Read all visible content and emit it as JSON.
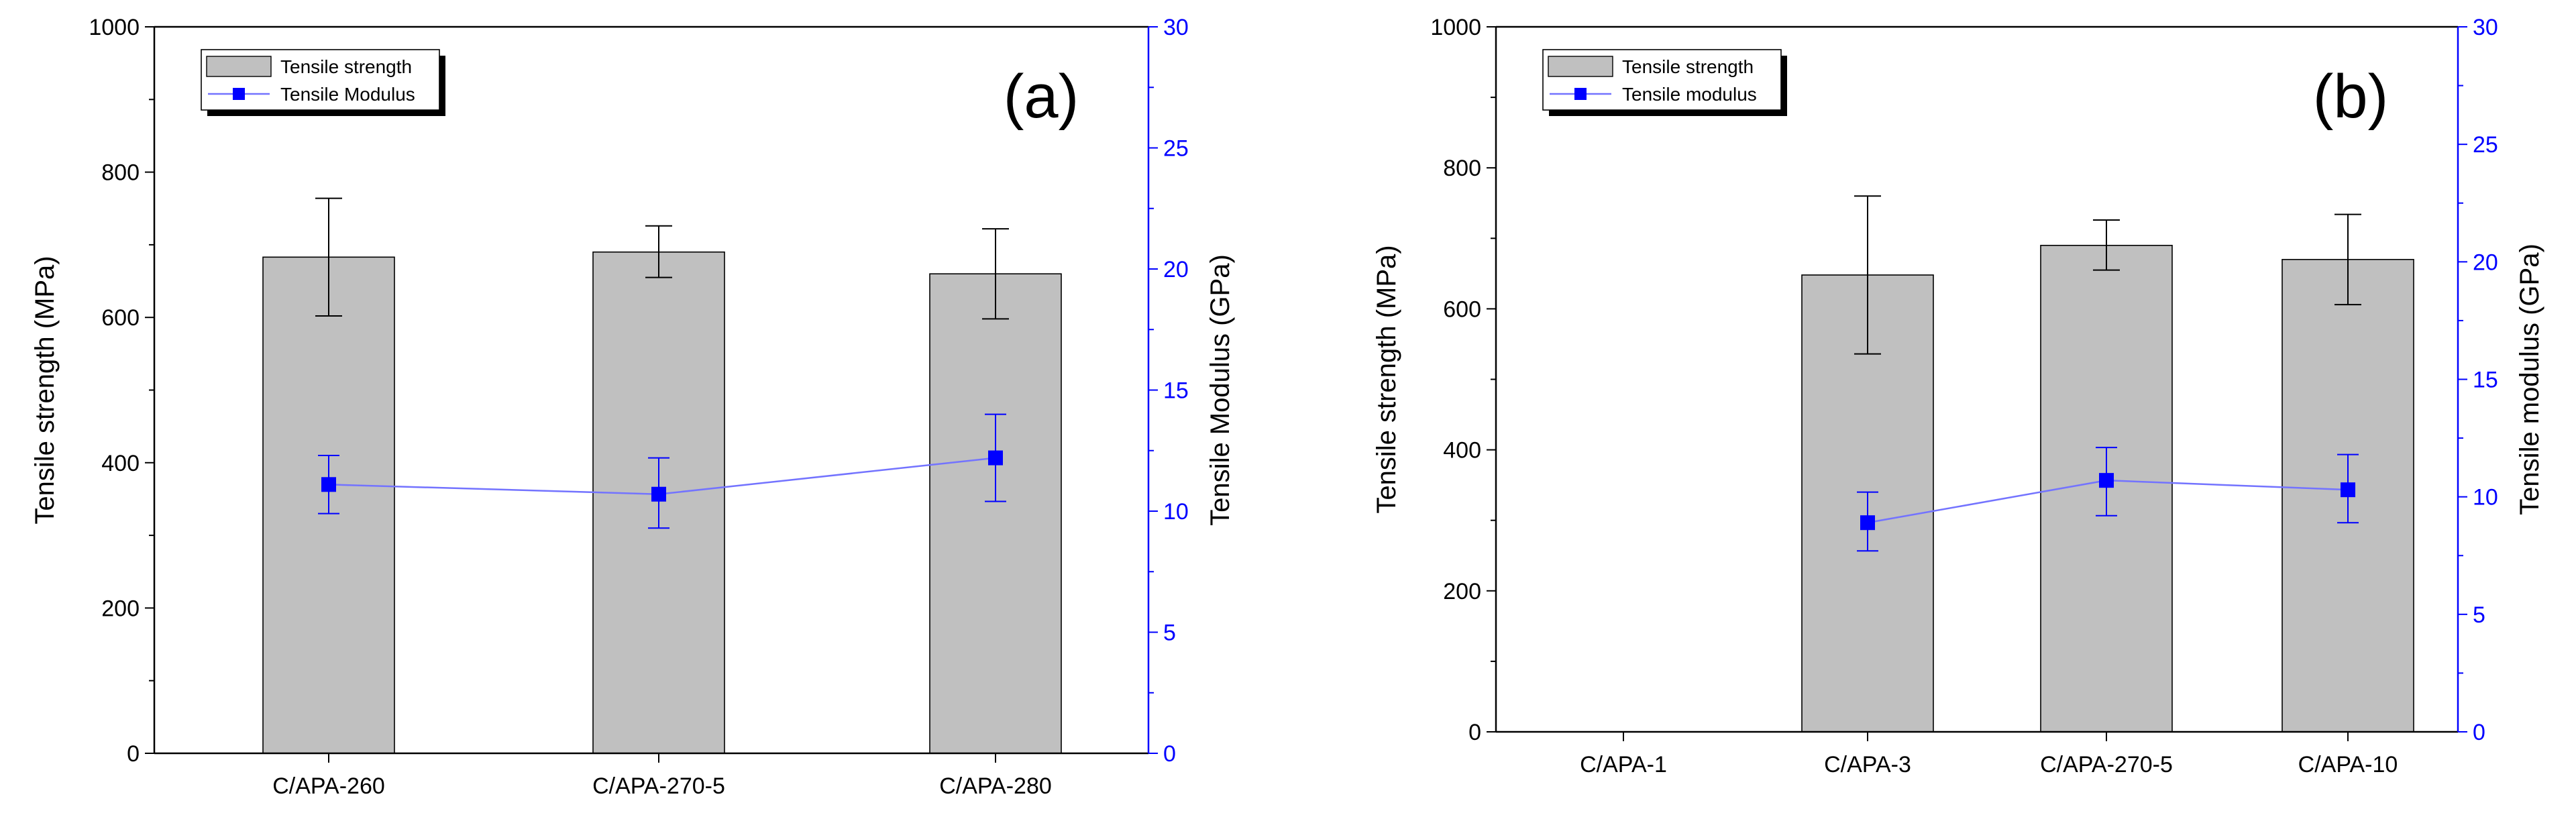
{
  "chart_data": [
    {
      "type": "bar",
      "panel_label": "(a)",
      "categories": [
        "C/APA-260",
        "C/APA-270-5",
        "C/APA-280"
      ],
      "ylabel": "Tensile strength (MPa)",
      "y2label": "Tensile Modulus (GPa)",
      "ylim": [
        0,
        1000
      ],
      "y2lim": [
        0,
        30
      ],
      "yticks": [
        "0",
        "200",
        "400",
        "600",
        "800",
        "1000"
      ],
      "y2ticks": [
        "0",
        "5",
        "10",
        "15",
        "20",
        "25",
        "30"
      ],
      "legend_position": "top-left",
      "series": [
        {
          "name": "Tensile strength",
          "kind": "bar",
          "axis": "left",
          "values": [
            683,
            690,
            660
          ],
          "err_low": [
            602,
            655,
            598
          ],
          "err_high": [
            764,
            726,
            722
          ]
        },
        {
          "name": "Tensile Modulus",
          "kind": "line",
          "axis": "right",
          "values": [
            11.1,
            10.7,
            12.2
          ],
          "err_low": [
            9.9,
            9.3,
            10.4
          ],
          "err_high": [
            12.3,
            12.2,
            14.0
          ]
        }
      ]
    },
    {
      "type": "bar",
      "panel_label": "(b)",
      "categories": [
        "C/APA-1",
        "C/APA-3",
        "C/APA-270-5",
        "C/APA-10"
      ],
      "ylabel": "Tensile strength (MPa)",
      "y2label": "Tensile modulus (GPa)",
      "ylim": [
        0,
        1000
      ],
      "y2lim": [
        0,
        30
      ],
      "yticks": [
        "0",
        "200",
        "400",
        "600",
        "800",
        "1000"
      ],
      "y2ticks": [
        "0",
        "5",
        "10",
        "15",
        "20",
        "25",
        "30"
      ],
      "legend_position": "top-left",
      "series": [
        {
          "name": "Tensile strength",
          "kind": "bar",
          "axis": "left",
          "values": [
            null,
            648,
            690,
            670
          ],
          "err_low": [
            null,
            536,
            655,
            606
          ],
          "err_high": [
            null,
            760,
            726,
            734
          ]
        },
        {
          "name": "Tensile modulus",
          "kind": "line",
          "axis": "right",
          "values": [
            null,
            8.9,
            10.7,
            10.3
          ],
          "err_low": [
            null,
            7.7,
            9.2,
            8.9
          ],
          "err_high": [
            null,
            10.2,
            12.1,
            11.8
          ]
        }
      ]
    }
  ]
}
